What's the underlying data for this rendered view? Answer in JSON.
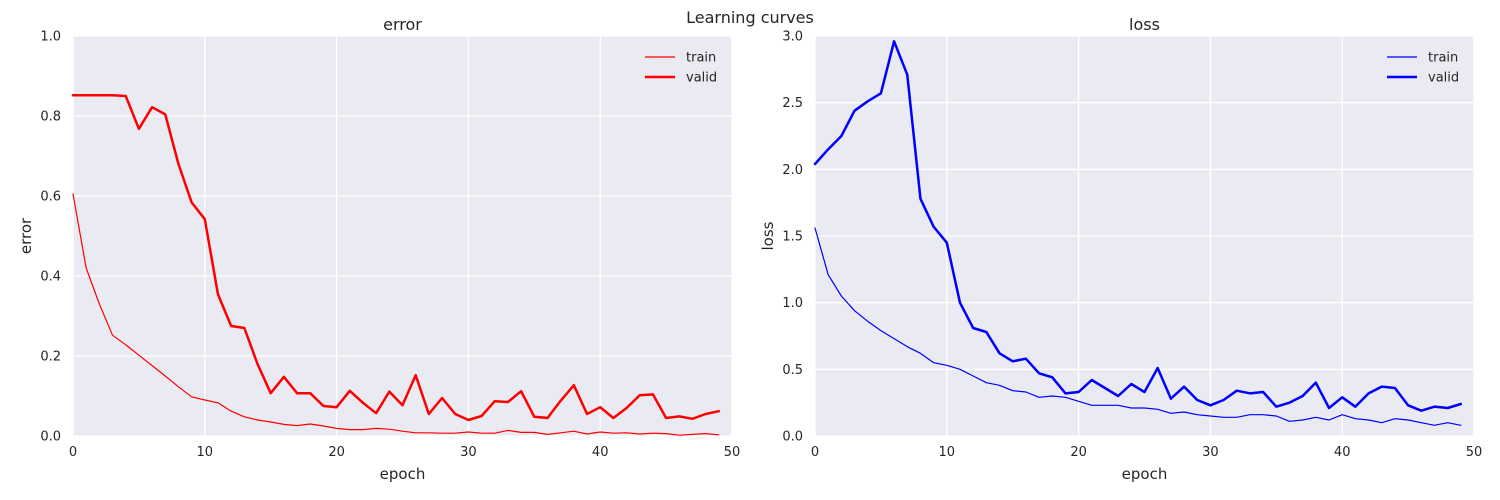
{
  "figure": {
    "suptitle": "Learning curves"
  },
  "chart_data": [
    {
      "type": "line",
      "title": "error",
      "xlabel": "epoch",
      "ylabel": "error",
      "xlim": [
        0,
        50
      ],
      "ylim": [
        0,
        1.0
      ],
      "xticks": [
        "0",
        "10",
        "20",
        "30",
        "40",
        "50"
      ],
      "yticks": [
        "0.0",
        "0.2",
        "0.4",
        "0.6",
        "0.8",
        "1.0"
      ],
      "grid": true,
      "legend": "top-right",
      "x": [
        0,
        1,
        2,
        3,
        4,
        5,
        6,
        7,
        8,
        9,
        10,
        11,
        12,
        13,
        14,
        15,
        16,
        17,
        18,
        19,
        20,
        21,
        22,
        23,
        24,
        25,
        26,
        27,
        28,
        29,
        30,
        31,
        32,
        33,
        34,
        35,
        36,
        37,
        38,
        39,
        40,
        41,
        42,
        43,
        44,
        45,
        46,
        47,
        48,
        49
      ],
      "series": [
        {
          "name": "train",
          "color": "#ff0000",
          "style": "thin",
          "values": [
            0.605,
            0.42,
            0.33,
            0.252,
            0.228,
            0.202,
            0.176,
            0.15,
            0.123,
            0.098,
            0.09,
            0.083,
            0.062,
            0.048,
            0.04,
            0.035,
            0.029,
            0.026,
            0.03,
            0.025,
            0.019,
            0.016,
            0.016,
            0.019,
            0.017,
            0.012,
            0.008,
            0.008,
            0.007,
            0.007,
            0.01,
            0.007,
            0.007,
            0.014,
            0.009,
            0.009,
            0.004,
            0.008,
            0.012,
            0.005,
            0.01,
            0.007,
            0.008,
            0.005,
            0.007,
            0.006,
            0.002,
            0.004,
            0.006,
            0.003
          ]
        },
        {
          "name": "valid",
          "color": "#ff0000",
          "style": "thick",
          "values": [
            0.852,
            0.852,
            0.852,
            0.852,
            0.85,
            0.768,
            0.822,
            0.804,
            0.68,
            0.584,
            0.542,
            0.354,
            0.275,
            0.27,
            0.18,
            0.107,
            0.148,
            0.107,
            0.107,
            0.075,
            0.072,
            0.113,
            0.083,
            0.057,
            0.111,
            0.077,
            0.152,
            0.055,
            0.095,
            0.055,
            0.04,
            0.05,
            0.087,
            0.085,
            0.112,
            0.048,
            0.045,
            0.088,
            0.127,
            0.055,
            0.072,
            0.045,
            0.07,
            0.102,
            0.104,
            0.045,
            0.049,
            0.043,
            0.055,
            0.062
          ]
        }
      ]
    },
    {
      "type": "line",
      "title": "loss",
      "xlabel": "epoch",
      "ylabel": "loss",
      "xlim": [
        0,
        50
      ],
      "ylim": [
        0,
        3.0
      ],
      "xticks": [
        "0",
        "10",
        "20",
        "30",
        "40",
        "50"
      ],
      "yticks": [
        "0.0",
        "0.5",
        "1.0",
        "1.5",
        "2.0",
        "2.5",
        "3.0"
      ],
      "grid": true,
      "legend": "top-right",
      "x": [
        0,
        1,
        2,
        3,
        4,
        5,
        6,
        7,
        8,
        9,
        10,
        11,
        12,
        13,
        14,
        15,
        16,
        17,
        18,
        19,
        20,
        21,
        22,
        23,
        24,
        25,
        26,
        27,
        28,
        29,
        30,
        31,
        32,
        33,
        34,
        35,
        36,
        37,
        38,
        39,
        40,
        41,
        42,
        43,
        44,
        45,
        46,
        47,
        48,
        49
      ],
      "series": [
        {
          "name": "train",
          "color": "#0000ff",
          "style": "thin",
          "values": [
            1.56,
            1.21,
            1.05,
            0.94,
            0.86,
            0.79,
            0.73,
            0.67,
            0.62,
            0.55,
            0.53,
            0.5,
            0.45,
            0.4,
            0.38,
            0.34,
            0.33,
            0.29,
            0.3,
            0.29,
            0.26,
            0.23,
            0.23,
            0.23,
            0.21,
            0.21,
            0.2,
            0.17,
            0.18,
            0.16,
            0.15,
            0.14,
            0.14,
            0.16,
            0.16,
            0.15,
            0.11,
            0.12,
            0.14,
            0.12,
            0.16,
            0.13,
            0.12,
            0.1,
            0.13,
            0.12,
            0.1,
            0.08,
            0.1,
            0.08
          ]
        },
        {
          "name": "valid",
          "color": "#0000ff",
          "style": "thick",
          "values": [
            2.04,
            2.15,
            2.25,
            2.44,
            2.51,
            2.57,
            2.96,
            2.71,
            1.78,
            1.57,
            1.45,
            1.0,
            0.81,
            0.78,
            0.62,
            0.56,
            0.58,
            0.47,
            0.44,
            0.32,
            0.33,
            0.42,
            0.36,
            0.3,
            0.39,
            0.33,
            0.51,
            0.28,
            0.37,
            0.27,
            0.23,
            0.27,
            0.34,
            0.32,
            0.33,
            0.22,
            0.25,
            0.3,
            0.4,
            0.21,
            0.29,
            0.22,
            0.32,
            0.37,
            0.36,
            0.23,
            0.19,
            0.22,
            0.21,
            0.24
          ]
        }
      ]
    }
  ]
}
